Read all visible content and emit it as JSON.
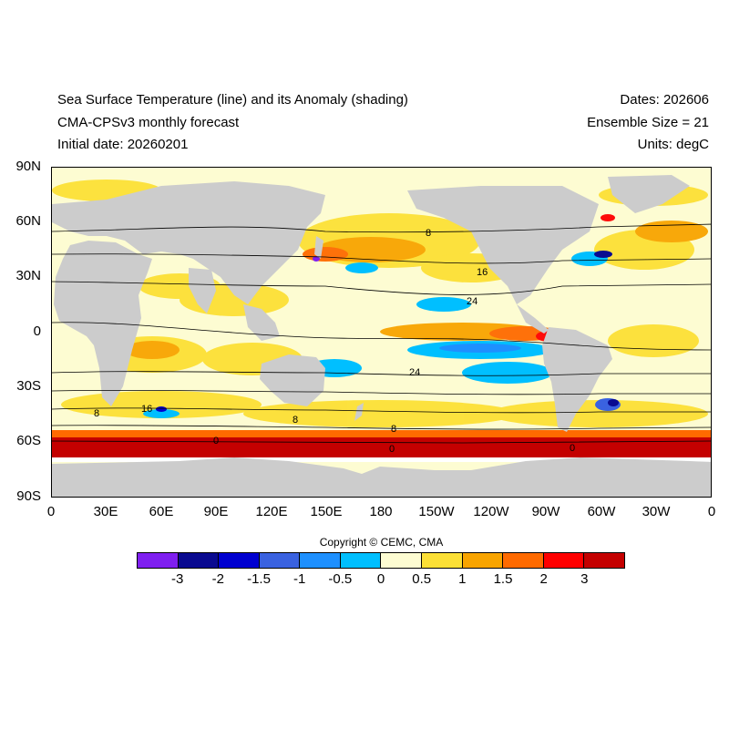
{
  "header": {
    "title": "Sea Surface Temperature (line) and its Anomaly (shading)",
    "model": "CMA-CPSv3 monthly forecast",
    "initial_date": "Initial date: 20260201",
    "dates": "Dates: 202606",
    "ensemble": "Ensemble Size = 21",
    "units": "Units: degC"
  },
  "axes": {
    "lat_ticks": [
      "90N",
      "60N",
      "30N",
      "0",
      "30S",
      "60S",
      "90S"
    ],
    "lon_ticks": [
      "0",
      "30E",
      "60E",
      "90E",
      "120E",
      "150E",
      "180",
      "150W",
      "120W",
      "90W",
      "60W",
      "30W",
      "0"
    ]
  },
  "contour_labels": [
    "8",
    "16",
    "24",
    "24",
    "16",
    "8",
    "0",
    "0",
    "0",
    "8",
    "8"
  ],
  "copyright": "Copyright © CEMC, CMA",
  "colorbar": {
    "labels": [
      "-3",
      "-2",
      "-1.5",
      "-1",
      "-0.5",
      "0",
      "0.5",
      "1",
      "1.5",
      "2",
      "3"
    ],
    "colors": [
      "#7f1ff0",
      "#0a0a90",
      "#0000d0",
      "#3a62e0",
      "#1e90ff",
      "#00bfff",
      "#fdfcd2",
      "#fce036",
      "#f8a400",
      "#ff6a00",
      "#ff0000",
      "#c40000"
    ]
  },
  "colors": {
    "land": "#cccccc",
    "neutral": "#fdfcd2",
    "contour": "#000000"
  }
}
